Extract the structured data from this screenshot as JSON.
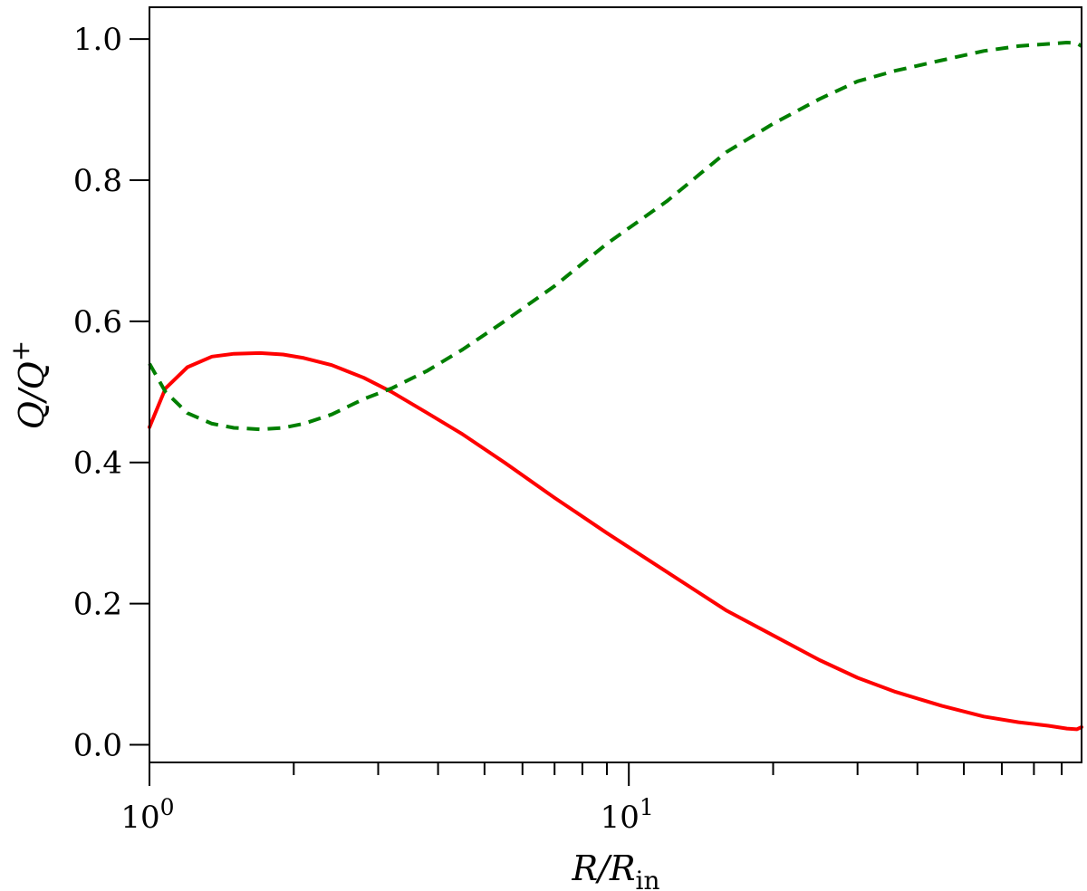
{
  "chart_data": {
    "type": "line",
    "x_scale": "log",
    "xlim": [
      1,
      88
    ],
    "ylim": [
      -0.025,
      1.045
    ],
    "x_ticks": [
      {
        "value": 1,
        "base": "10",
        "exp": "0"
      },
      {
        "value": 10,
        "base": "10",
        "exp": "1"
      }
    ],
    "y_ticks": [
      {
        "value": 0.0,
        "label": "0.0"
      },
      {
        "value": 0.2,
        "label": "0.2"
      },
      {
        "value": 0.4,
        "label": "0.4"
      },
      {
        "value": 0.6,
        "label": "0.6"
      },
      {
        "value": 0.8,
        "label": "0.8"
      },
      {
        "value": 1.0,
        "label": "1.0"
      }
    ],
    "xlabel": {
      "main": "R/R",
      "sub": "in"
    },
    "ylabel": {
      "main": "Q/Q",
      "sup": "+"
    },
    "grid": false,
    "series": [
      {
        "color": "#ff0000",
        "style": "solid",
        "x": [
          1.0,
          1.08,
          1.2,
          1.35,
          1.5,
          1.7,
          1.9,
          2.1,
          2.4,
          2.8,
          3.2,
          3.8,
          4.5,
          5.5,
          7.0,
          9.0,
          12.0,
          16.0,
          20.0,
          25.0,
          30.0,
          36.0,
          45.0,
          55.0,
          65.0,
          75.0,
          82.0,
          86.0,
          88.0
        ],
        "values": [
          0.45,
          0.505,
          0.535,
          0.55,
          0.554,
          0.555,
          0.553,
          0.548,
          0.538,
          0.52,
          0.5,
          0.47,
          0.44,
          0.4,
          0.35,
          0.3,
          0.245,
          0.19,
          0.155,
          0.12,
          0.095,
          0.075,
          0.055,
          0.04,
          0.032,
          0.027,
          0.023,
          0.022,
          0.025
        ]
      },
      {
        "color": "#007f00",
        "style": "dashed",
        "x": [
          1.0,
          1.08,
          1.2,
          1.35,
          1.5,
          1.7,
          1.9,
          2.1,
          2.4,
          2.8,
          3.2,
          3.8,
          4.5,
          5.5,
          7.0,
          9.0,
          12.0,
          16.0,
          20.0,
          25.0,
          30.0,
          36.0,
          45.0,
          55.0,
          65.0,
          75.0,
          82.0,
          86.0,
          88.0
        ],
        "values": [
          0.54,
          0.5,
          0.47,
          0.455,
          0.449,
          0.447,
          0.449,
          0.455,
          0.468,
          0.49,
          0.505,
          0.53,
          0.56,
          0.6,
          0.65,
          0.71,
          0.77,
          0.84,
          0.88,
          0.915,
          0.94,
          0.955,
          0.97,
          0.983,
          0.99,
          0.993,
          0.995,
          0.994,
          0.99
        ]
      }
    ]
  }
}
